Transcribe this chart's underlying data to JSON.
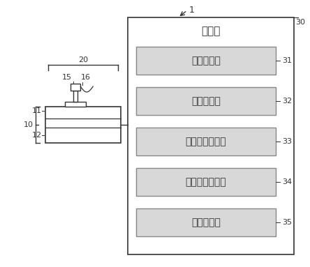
{
  "bg_color": "#ffffff",
  "line_color": "#333333",
  "box_fill": "#d8d8d8",
  "label_1": "1",
  "label_10": "10",
  "label_11": "11",
  "label_12": "12",
  "label_15": "15",
  "label_16": "16",
  "label_20": "20",
  "label_30": "30",
  "label_31": "31",
  "label_32": "32",
  "label_33": "33",
  "label_34": "34",
  "label_35": "35",
  "ctrl_label": "控制部",
  "box_labels": [
    "方向检测部",
    "力量检测部",
    "操作信号生成部",
    "显示信号生成部",
    "输入输出部"
  ],
  "font_size": 10,
  "small_font": 8,
  "ref_font": 8
}
